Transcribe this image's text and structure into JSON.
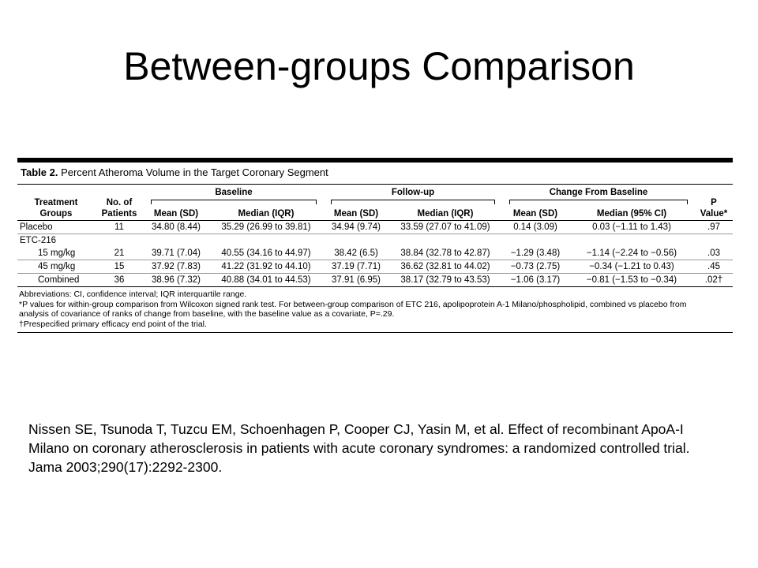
{
  "slide": {
    "title": "Between-groups Comparison"
  },
  "table": {
    "caption_label": "Table 2.",
    "caption_text": " Percent Atheroma Volume in the Target Coronary Segment",
    "group_headers": [
      "Baseline",
      "Follow-up",
      "Change From Baseline"
    ],
    "col_treatment": "Treatment Groups",
    "col_patients": "No. of Patients",
    "col_p": "P Value*",
    "sub_headers": [
      "Mean (SD)",
      "Median (IQR)",
      "Mean (SD)",
      "Median (IQR)",
      "Mean (SD)",
      "Median (95% CI)"
    ],
    "rows": [
      {
        "group": "Placebo",
        "n": "11",
        "b_mean": "34.80 (8.44)",
        "b_median": "35.29 (26.99 to 39.81)",
        "f_mean": "34.94 (9.74)",
        "f_median": "33.59 (27.07 to 41.09)",
        "c_mean": "0.14 (3.09)",
        "c_median": "0.03 (−1.11 to 1.43)",
        "p": ".97"
      },
      {
        "group": "ETC-216"
      },
      {
        "group": "15 mg/kg",
        "n": "21",
        "b_mean": "39.71 (7.04)",
        "b_median": "40.55 (34.16 to 44.97)",
        "f_mean": "38.42 (6.5)",
        "f_median": "38.84 (32.78 to 42.87)",
        "c_mean": "−1.29 (3.48)",
        "c_median": "−1.14 (−2.24 to −0.56)",
        "p": ".03"
      },
      {
        "group": "45 mg/kg",
        "n": "15",
        "b_mean": "37.92 (7.83)",
        "b_median": "41.22 (31.92 to 44.10)",
        "f_mean": "37.19 (7.71)",
        "f_median": "36.62 (32.81 to 44.02)",
        "c_mean": "−0.73 (2.75)",
        "c_median": "−0.34 (−1.21 to 0.43)",
        "p": ".45"
      },
      {
        "group": "Combined",
        "n": "36",
        "b_mean": "38.96 (7.32)",
        "b_median": "40.88 (34.01 to 44.53)",
        "f_mean": "37.91 (6.95)",
        "f_median": "38.17 (32.79 to 43.53)",
        "c_mean": "−1.06 (3.17)",
        "c_median": "−0.81 (−1.53 to −0.34)",
        "p": ".02†"
      }
    ],
    "footnotes": "Abbreviations: CI, confidence interval; IQR interquartile range.\n*P values for within-group comparison from Wilcoxon signed rank test. For between-group comparison of ETC 216, apolipoprotein A-1 Milano/phospholipid, combined vs placebo from\n   analysis of covariance of ranks of change from baseline, with the baseline value as a covariate, P=.29.\n†Prespecified primary efficacy end point of the trial."
  },
  "citation": "Nissen SE, Tsunoda T, Tuzcu EM, Schoenhagen P, Cooper CJ, Yasin M, et al. Effect of recombinant ApoA-I Milano on coronary atherosclerosis in patients with acute coronary syndromes: a randomized controlled trial. Jama 2003;290(17):2292-2300."
}
